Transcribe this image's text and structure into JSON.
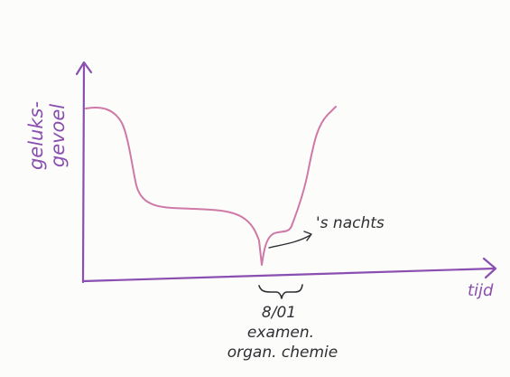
{
  "chart_data": {
    "type": "line",
    "title": "",
    "ylabel": "geluks-gevoel",
    "xlabel": "tijd",
    "annotations": [
      {
        "text": "'s nachts"
      },
      {
        "text": "8/01"
      },
      {
        "text": "examen."
      },
      {
        "text": "organ. chemie"
      }
    ],
    "grid": false,
    "legend": "none",
    "colors": {
      "axis": "#8a4fb0",
      "curve": "#cf79a6",
      "ink": "#2f2f34"
    }
  }
}
